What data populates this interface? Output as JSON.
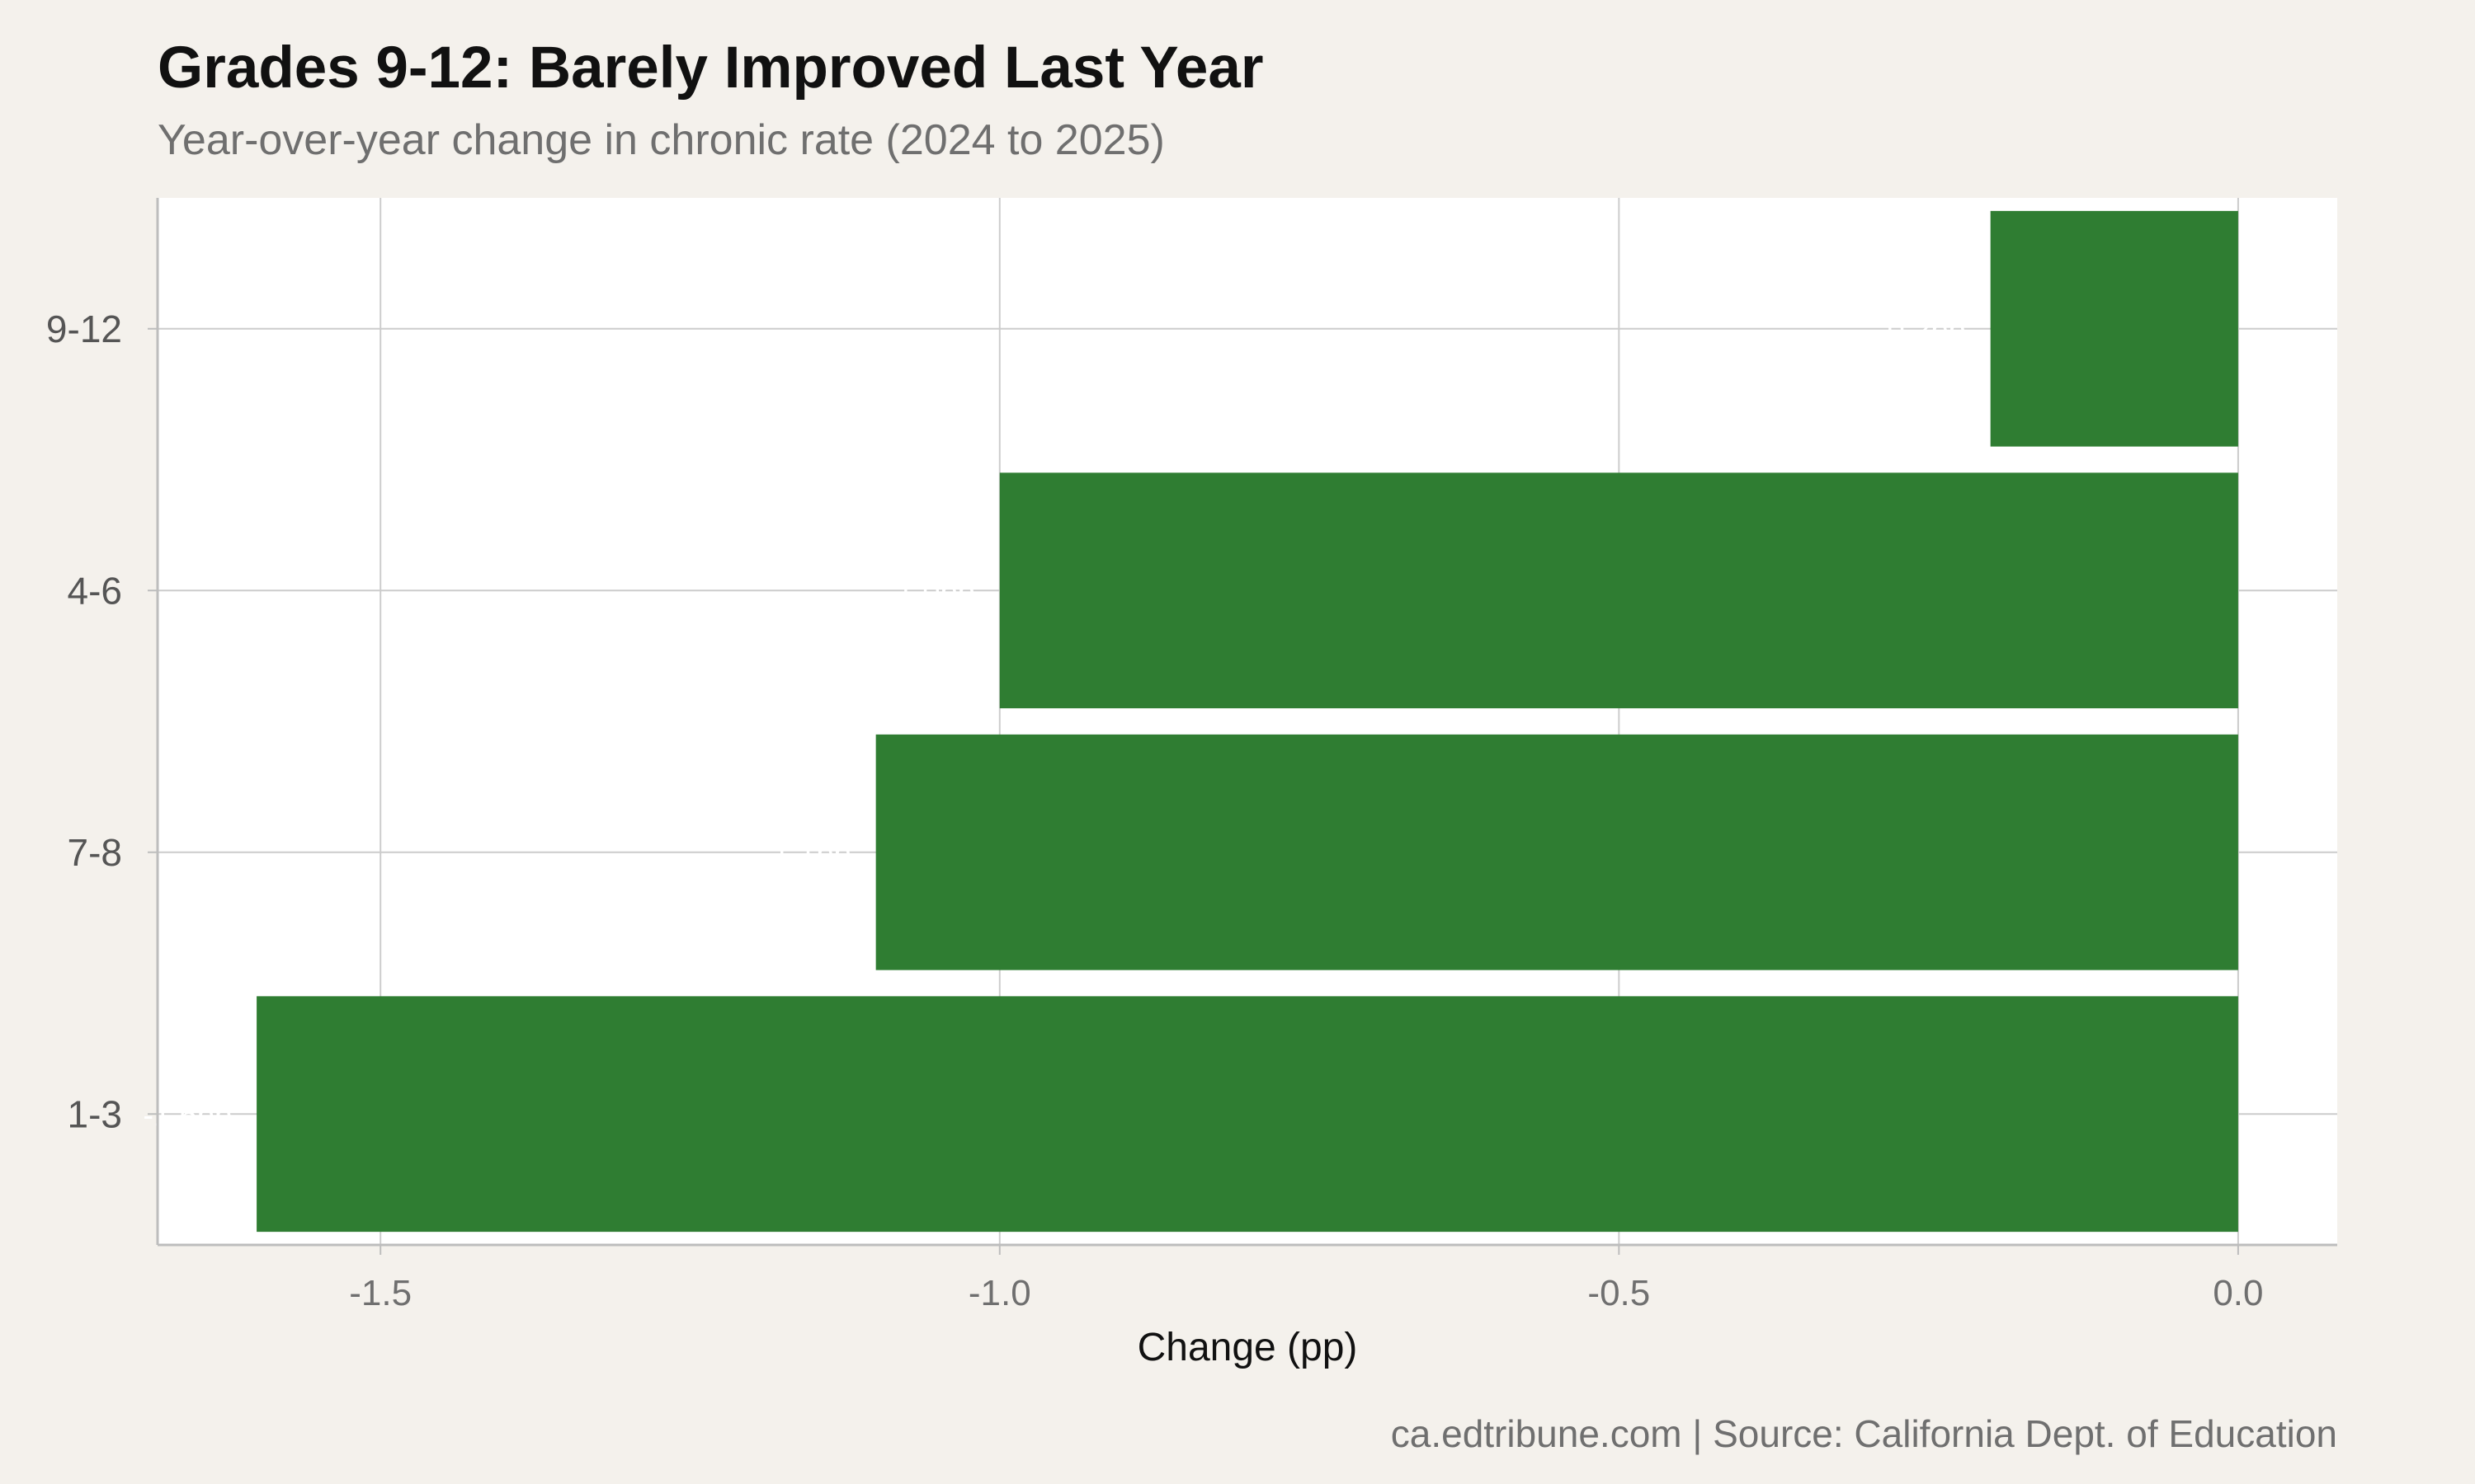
{
  "chart_data": {
    "type": "bar",
    "orientation": "horizontal",
    "title": "Grades 9-12: Barely Improved Last Year",
    "subtitle": "Year-over-year change in chronic rate (2024 to 2025)",
    "xlabel": "Change (pp)",
    "ylabel": "",
    "caption": "ca.edtribune.com | Source: California Dept. of Education",
    "categories": [
      "9-12",
      "4-6",
      "7-8",
      "1-3"
    ],
    "values": [
      -0.2,
      -1.0,
      -1.1,
      -1.6
    ],
    "data_labels": [
      "-0.2pp",
      "-1.0pp",
      "-1.1pp",
      "-1.6pp"
    ],
    "xlim": [
      -1.68,
      0.08
    ],
    "xticks": [
      -1.5,
      -1.0,
      -0.5,
      0.0
    ],
    "xtick_labels": [
      "-1.5",
      "-1.0",
      "-0.5",
      "0.0"
    ],
    "grid": true,
    "legend": "none",
    "colors": {
      "bar": "#2f7d32",
      "background": "#f4f1ec",
      "panel": "#ffffff",
      "grid": "#cccccc",
      "axis": "#bdbdbd",
      "data_label": "#ffffff"
    }
  }
}
